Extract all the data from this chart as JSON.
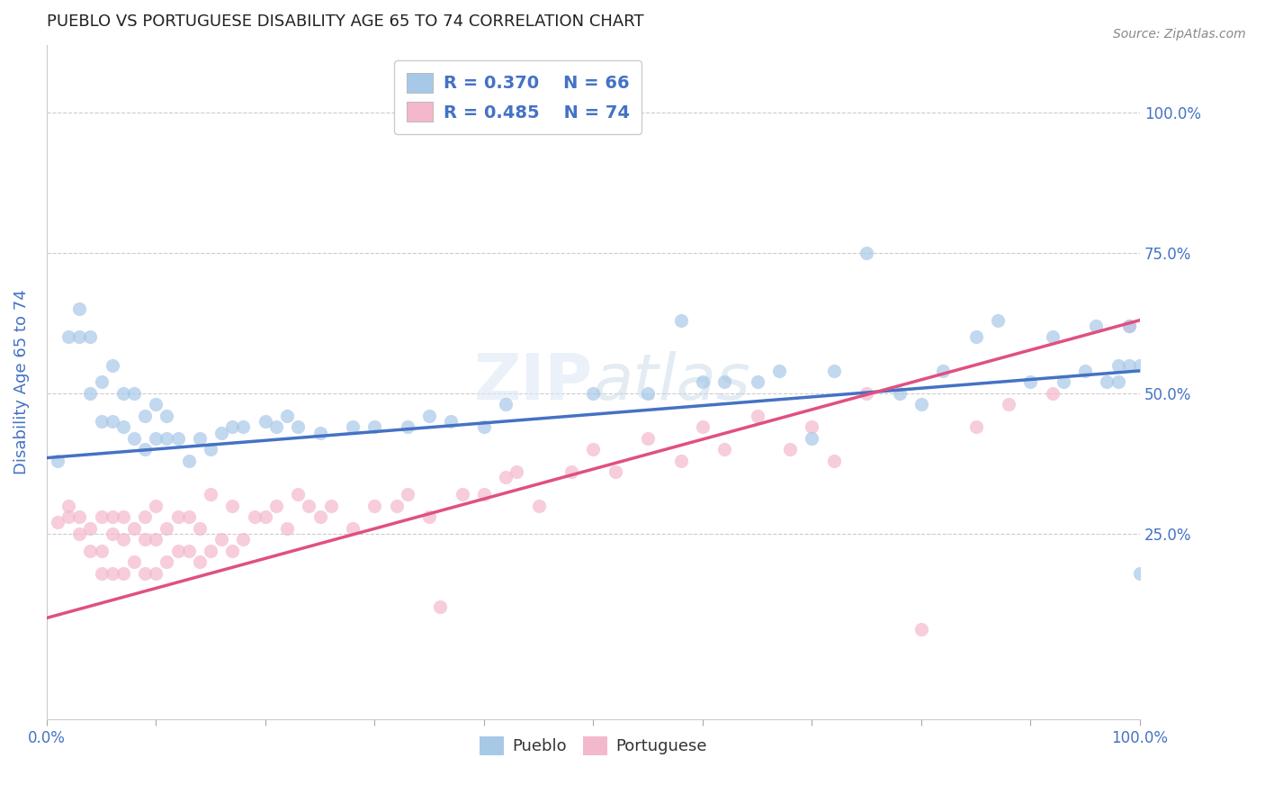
{
  "title": "PUEBLO VS PORTUGUESE DISABILITY AGE 65 TO 74 CORRELATION CHART",
  "source": "Source: ZipAtlas.com",
  "ylabel": "Disability Age 65 to 74",
  "xlim": [
    0,
    1.0
  ],
  "ylim": [
    -0.08,
    1.12
  ],
  "xticks": [
    0.0,
    0.1,
    0.2,
    0.3,
    0.4,
    0.5,
    0.6,
    0.7,
    0.8,
    0.9,
    1.0
  ],
  "xticklabels": [
    "0.0%",
    "",
    "",
    "",
    "",
    "",
    "",
    "",
    "",
    "",
    "100.0%"
  ],
  "yticks": [
    0.25,
    0.5,
    0.75,
    1.0
  ],
  "yticklabels": [
    "25.0%",
    "50.0%",
    "75.0%",
    "100.0%"
  ],
  "pueblo_color": "#a8c8e8",
  "portuguese_color": "#f4b8cc",
  "pueblo_line_color": "#4472c4",
  "portuguese_line_color": "#e05080",
  "legend_pueblo_r": "R = 0.370",
  "legend_pueblo_n": "N = 66",
  "legend_portuguese_r": "R = 0.485",
  "legend_portuguese_n": "N = 74",
  "pueblo_scatter_x": [
    0.01,
    0.02,
    0.03,
    0.03,
    0.04,
    0.04,
    0.05,
    0.05,
    0.06,
    0.06,
    0.07,
    0.07,
    0.08,
    0.08,
    0.09,
    0.09,
    0.1,
    0.1,
    0.11,
    0.11,
    0.12,
    0.13,
    0.14,
    0.15,
    0.16,
    0.17,
    0.18,
    0.2,
    0.21,
    0.22,
    0.23,
    0.25,
    0.28,
    0.3,
    0.33,
    0.35,
    0.37,
    0.4,
    0.42,
    0.5,
    0.55,
    0.58,
    0.6,
    0.62,
    0.65,
    0.67,
    0.7,
    0.72,
    0.75,
    0.78,
    0.8,
    0.82,
    0.85,
    0.87,
    0.9,
    0.92,
    0.93,
    0.95,
    0.96,
    0.97,
    0.98,
    0.98,
    0.99,
    0.99,
    1.0,
    1.0
  ],
  "pueblo_scatter_y": [
    0.38,
    0.6,
    0.6,
    0.65,
    0.5,
    0.6,
    0.45,
    0.52,
    0.45,
    0.55,
    0.44,
    0.5,
    0.42,
    0.5,
    0.4,
    0.46,
    0.42,
    0.48,
    0.42,
    0.46,
    0.42,
    0.38,
    0.42,
    0.4,
    0.43,
    0.44,
    0.44,
    0.45,
    0.44,
    0.46,
    0.44,
    0.43,
    0.44,
    0.44,
    0.44,
    0.46,
    0.45,
    0.44,
    0.48,
    0.5,
    0.5,
    0.63,
    0.52,
    0.52,
    0.52,
    0.54,
    0.42,
    0.54,
    0.75,
    0.5,
    0.48,
    0.54,
    0.6,
    0.63,
    0.52,
    0.6,
    0.52,
    0.54,
    0.62,
    0.52,
    0.55,
    0.52,
    0.62,
    0.55,
    0.18,
    0.55
  ],
  "portuguese_scatter_x": [
    0.01,
    0.02,
    0.02,
    0.03,
    0.03,
    0.04,
    0.04,
    0.05,
    0.05,
    0.05,
    0.06,
    0.06,
    0.06,
    0.07,
    0.07,
    0.07,
    0.08,
    0.08,
    0.09,
    0.09,
    0.09,
    0.1,
    0.1,
    0.1,
    0.11,
    0.11,
    0.12,
    0.12,
    0.13,
    0.13,
    0.14,
    0.14,
    0.15,
    0.15,
    0.16,
    0.17,
    0.17,
    0.18,
    0.19,
    0.2,
    0.21,
    0.22,
    0.23,
    0.24,
    0.25,
    0.26,
    0.28,
    0.3,
    0.32,
    0.33,
    0.35,
    0.36,
    0.38,
    0.4,
    0.42,
    0.43,
    0.45,
    0.48,
    0.5,
    0.52,
    0.55,
    0.58,
    0.6,
    0.62,
    0.65,
    0.68,
    0.7,
    0.72,
    0.75,
    0.8,
    0.85,
    0.88,
    0.92,
    0.99
  ],
  "portuguese_scatter_y": [
    0.27,
    0.28,
    0.3,
    0.25,
    0.28,
    0.22,
    0.26,
    0.18,
    0.22,
    0.28,
    0.18,
    0.25,
    0.28,
    0.18,
    0.24,
    0.28,
    0.2,
    0.26,
    0.18,
    0.24,
    0.28,
    0.18,
    0.24,
    0.3,
    0.2,
    0.26,
    0.22,
    0.28,
    0.22,
    0.28,
    0.2,
    0.26,
    0.22,
    0.32,
    0.24,
    0.22,
    0.3,
    0.24,
    0.28,
    0.28,
    0.3,
    0.26,
    0.32,
    0.3,
    0.28,
    0.3,
    0.26,
    0.3,
    0.3,
    0.32,
    0.28,
    0.12,
    0.32,
    0.32,
    0.35,
    0.36,
    0.3,
    0.36,
    0.4,
    0.36,
    0.42,
    0.38,
    0.44,
    0.4,
    0.46,
    0.4,
    0.44,
    0.38,
    0.5,
    0.08,
    0.44,
    0.48,
    0.5,
    0.62
  ],
  "pueblo_line_x": [
    0.0,
    1.0
  ],
  "pueblo_line_y": [
    0.385,
    0.54
  ],
  "portuguese_line_x": [
    0.0,
    1.0
  ],
  "portuguese_line_y": [
    0.1,
    0.63
  ],
  "background_color": "#ffffff",
  "grid_color": "#cccccc",
  "title_color": "#222222",
  "axis_color": "#4472c4",
  "tick_color": "#4472c4"
}
